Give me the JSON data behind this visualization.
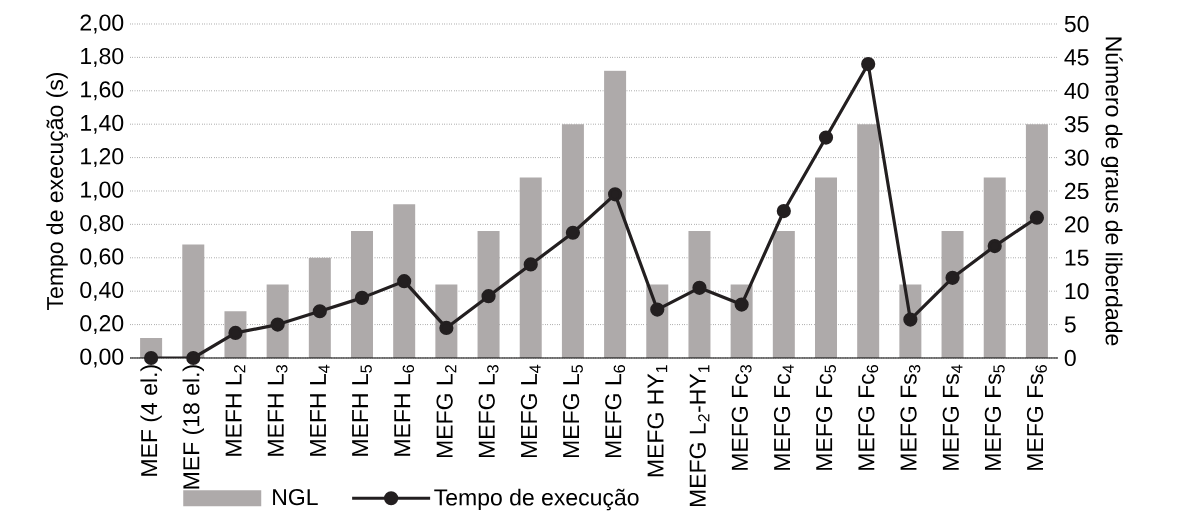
{
  "chart_data": {
    "type": "bar",
    "ylabel": "Tempo de execução (s)",
    "y2label": "Número de graus de liberdade",
    "categories": [
      "MEF (4 el.)",
      "MEF (18 el.)",
      "MEFH L$_{2}$",
      "MEFH L$_{3}$",
      "MEFH L$_{4}$",
      "MEFH L$_{5}$",
      "MEFH L$_{6}$",
      "MEFG L$_{2}$",
      "MEFG L$_{3}$",
      "MEFG L$_{4}$",
      "MEFG L$_{5}$",
      "MEFG L$_{6}$",
      "MEFG HY$_{1}$",
      "MEFG L$_{2}$-HY$_{1}$",
      "MEFG Fc$_{3}$",
      "MEFG Fc$_{4}$",
      "MEFG Fc$_{5}$",
      "MEFG Fc$_{6}$",
      "MEFG Fs$_{3}$",
      "MEFG Fs$_{4}$",
      "MEFG Fs$_{5}$",
      "MEFG Fs$_{6}$"
    ],
    "series": [
      {
        "name": "NGL",
        "axis": "y2",
        "color": "#aeaaaa",
        "values": [
          3,
          17,
          7,
          11,
          15,
          19,
          23,
          11,
          19,
          27,
          35,
          43,
          11,
          19,
          11,
          19,
          27,
          35,
          11,
          19,
          27,
          35
        ]
      },
      {
        "name": "Tempo de execução",
        "type": "line",
        "color": "#231f20",
        "values": [
          0,
          0,
          0.15,
          0.2,
          0.28,
          0.36,
          0.46,
          0.18,
          0.37,
          0.56,
          0.75,
          0.98,
          0.29,
          0.42,
          0.32,
          0.88,
          1.32,
          1.76,
          0.23,
          0.48,
          0.67,
          0.84
        ]
      }
    ],
    "ylim": [
      0,
      2
    ],
    "yticks": [
      {
        "value": 0,
        "label": "0,00"
      },
      {
        "value": 0.2,
        "label": "0,20"
      },
      {
        "value": 0.4,
        "label": "0,40"
      },
      {
        "value": 0.6,
        "label": "0,60"
      },
      {
        "value": 0.8,
        "label": "0,80"
      },
      {
        "value": 1,
        "label": "1,00"
      },
      {
        "value": 1.2,
        "label": "1,20"
      },
      {
        "value": 1.4,
        "label": "1,40"
      },
      {
        "value": 1.6,
        "label": "1,60"
      },
      {
        "value": 1.8,
        "label": "1,80"
      },
      {
        "value": 2,
        "label": "2,00"
      }
    ],
    "y2lim": [
      0,
      50
    ],
    "y2ticks": [
      0,
      5,
      10,
      15,
      20,
      25,
      30,
      35,
      40,
      45,
      50
    ],
    "grid": "y",
    "legend": "bottom",
    "marker": "circle",
    "line_style": "solid"
  }
}
